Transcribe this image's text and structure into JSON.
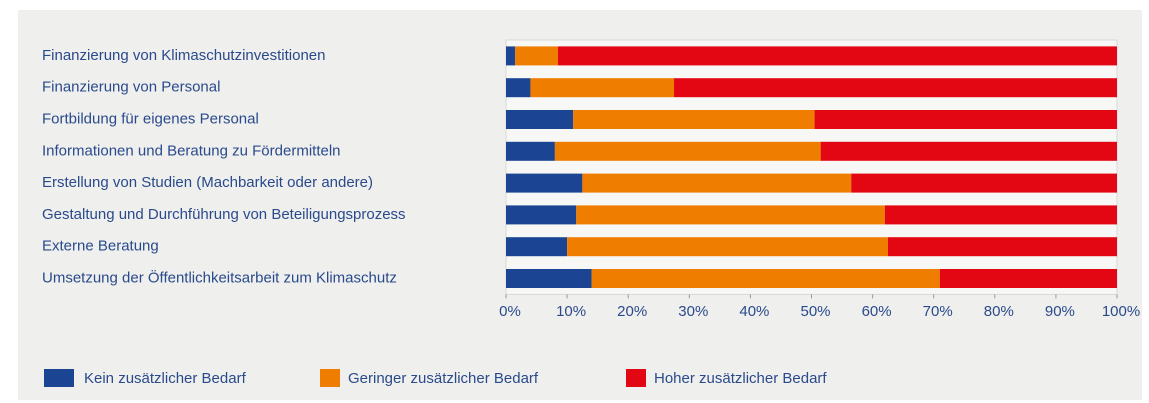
{
  "chart_data": {
    "type": "stacked_barh",
    "categories": [
      "Finanzierung von Klimaschutzinvestitionen",
      "Finanzierung von Personal",
      "Fortbildung für eigenes Personal",
      "Informationen und Beratung zu Fördermitteln",
      "Erstellung von Studien (Machbarkeit oder andere)",
      "Gestaltung und Durchführung von Beteiligungsprozess",
      "Externe Beratung",
      "Umsetzung der Öffentlichkeitsarbeit zum Klimaschutz"
    ],
    "series": [
      {
        "name": "Kein zusätzlicher Bedarf",
        "color": "#1b4592",
        "values": [
          1.5,
          4,
          11,
          8,
          12.5,
          11.5,
          10,
          14
        ]
      },
      {
        "name": "Geringer zusätzlicher Bedarf",
        "color": "#ef7d00",
        "values": [
          7,
          23.5,
          39.5,
          43.5,
          44,
          50.5,
          52.5,
          57
        ]
      },
      {
        "name": "Hoher zusätzlicher Bedarf",
        "color": "#e30613",
        "values": [
          91.5,
          72.5,
          49.5,
          48.5,
          43.5,
          38,
          37.5,
          29
        ]
      }
    ],
    "xlim": [
      0,
      100
    ],
    "xticks": [
      {
        "value": 0,
        "label": "0%"
      },
      {
        "value": 10,
        "label": "10%"
      },
      {
        "value": 20,
        "label": "20%"
      },
      {
        "value": 30,
        "label": "30%"
      },
      {
        "value": 40,
        "label": "40%"
      },
      {
        "value": 50,
        "label": "50%"
      },
      {
        "value": 60,
        "label": "60%"
      },
      {
        "value": 70,
        "label": "70%"
      },
      {
        "value": 80,
        "label": "80%"
      },
      {
        "value": 90,
        "label": "90%"
      },
      {
        "value": 100,
        "label": "100%"
      }
    ],
    "legend": "bottom"
  }
}
